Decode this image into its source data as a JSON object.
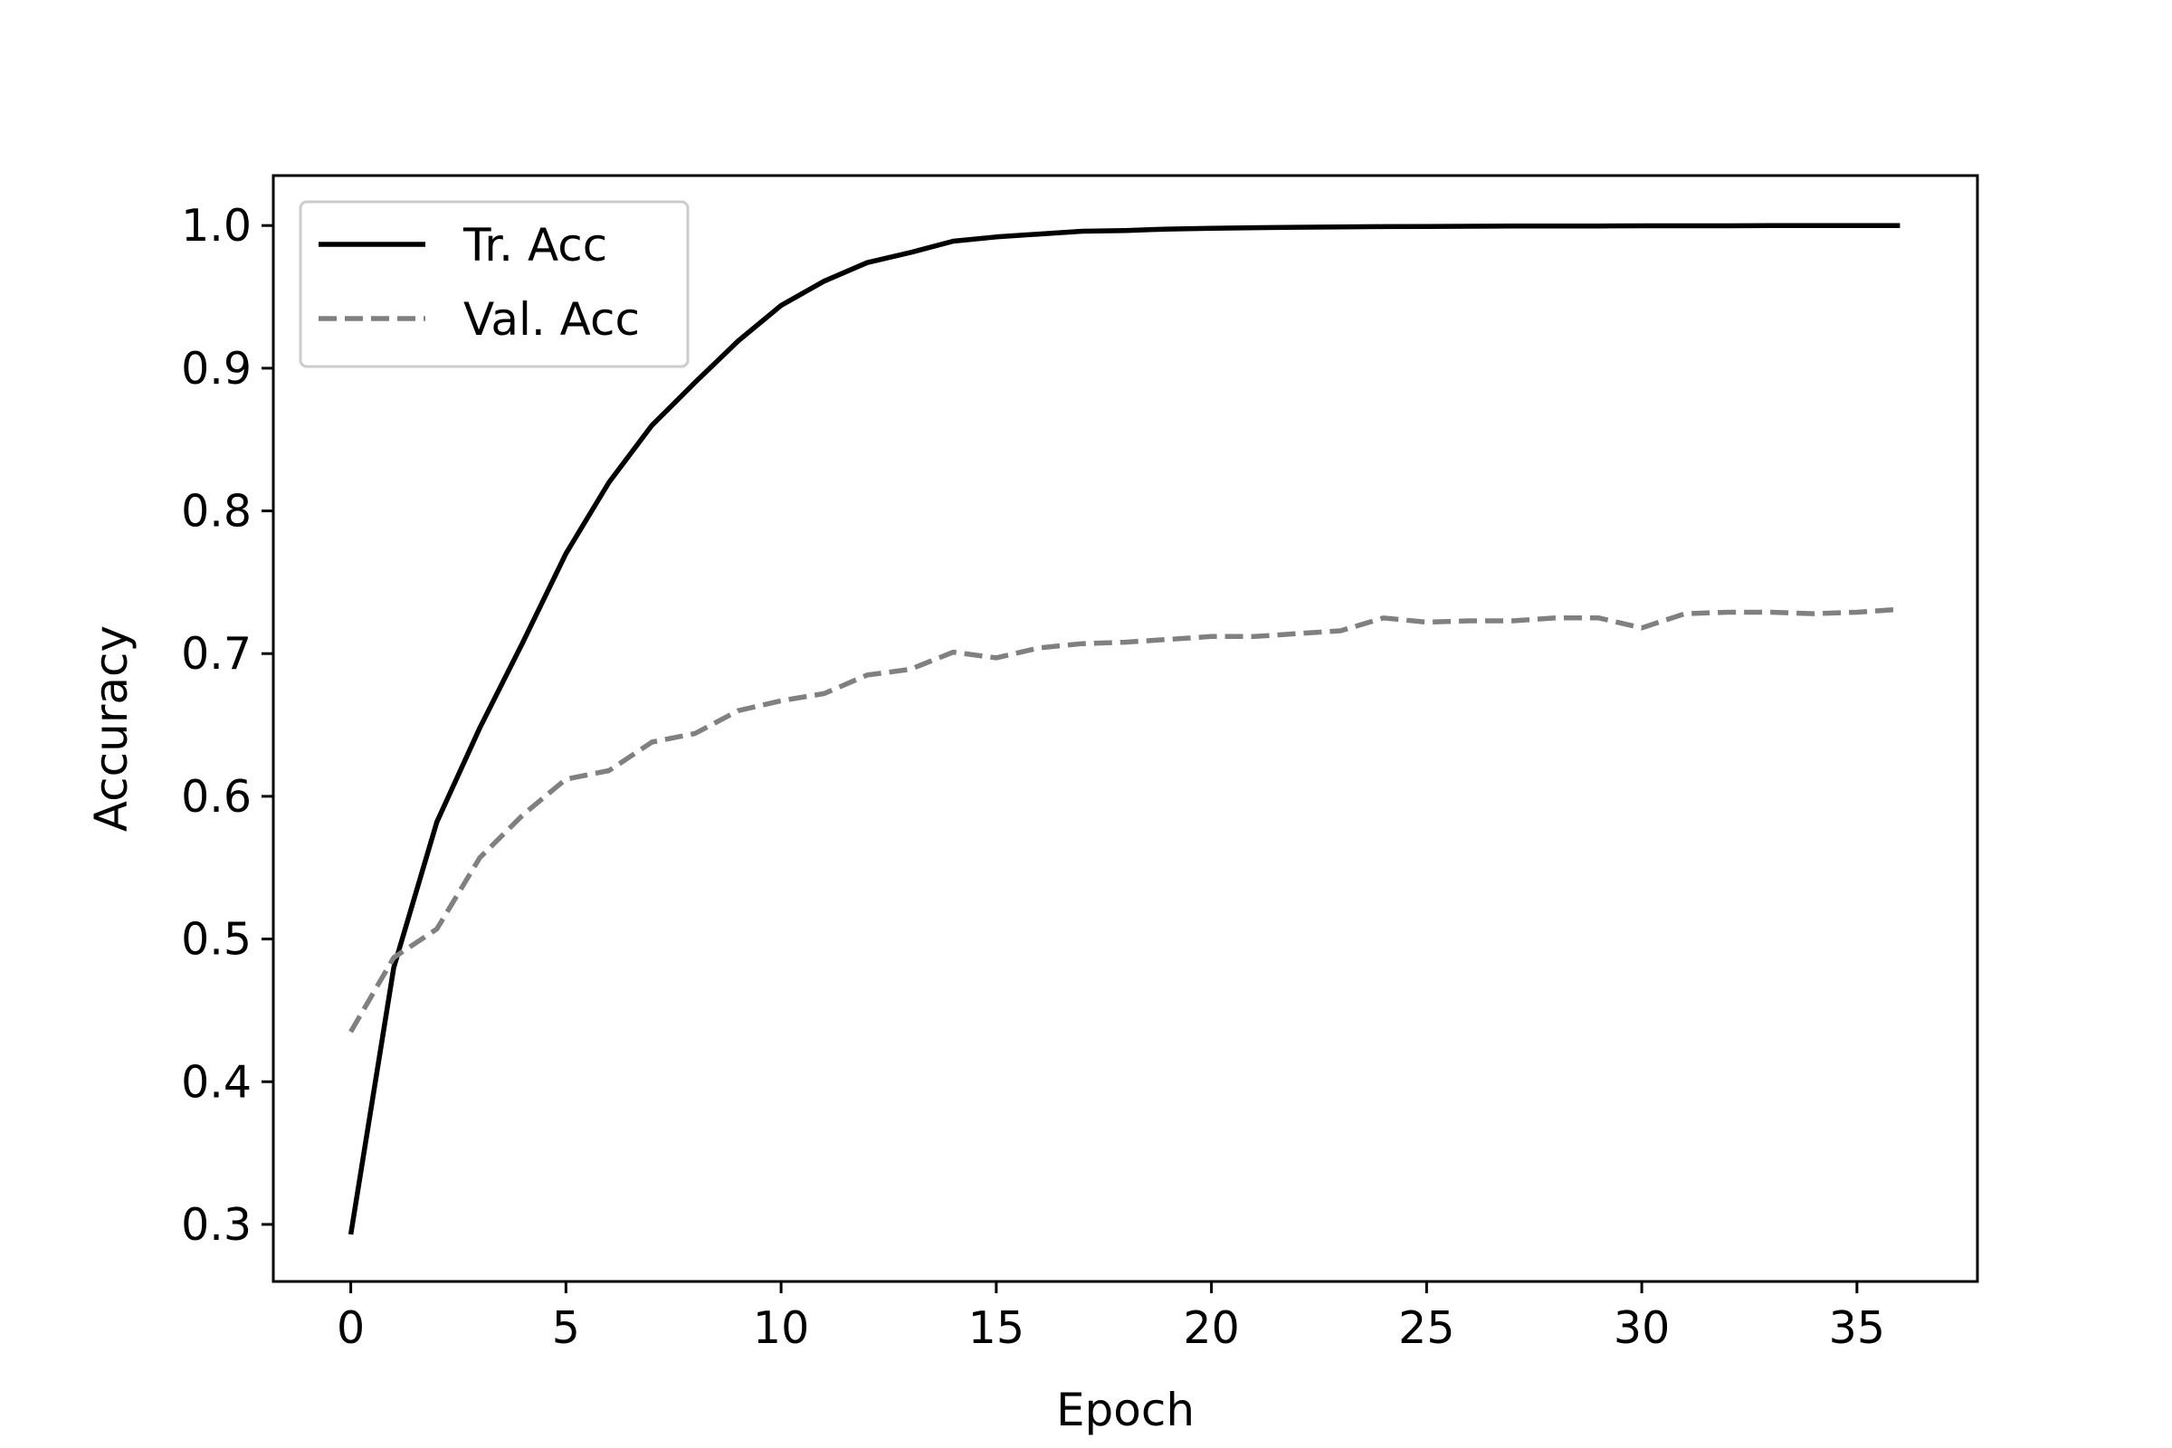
{
  "chart_data": {
    "type": "line",
    "title": "",
    "xlabel": "Epoch",
    "ylabel": "Accuracy",
    "xlim": [
      -1.8,
      37.8
    ],
    "ylim": [
      0.26,
      1.035
    ],
    "xticks": [
      0,
      5,
      10,
      15,
      20,
      25,
      30,
      35
    ],
    "xtick_labels": [
      "0",
      "5",
      "10",
      "15",
      "20",
      "25",
      "30",
      "35"
    ],
    "yticks": [
      0.3,
      0.4,
      0.5,
      0.6,
      0.7,
      0.8,
      0.9,
      1.0
    ],
    "ytick_labels": [
      "0.3",
      "0.4",
      "0.5",
      "0.6",
      "0.7",
      "0.8",
      "0.9",
      "1.0"
    ],
    "grid": false,
    "legend_position": "top-left",
    "x": [
      0,
      1,
      2,
      3,
      4,
      5,
      6,
      7,
      8,
      9,
      10,
      11,
      12,
      13,
      14,
      15,
      16,
      17,
      18,
      19,
      20,
      21,
      22,
      23,
      24,
      25,
      26,
      27,
      28,
      29,
      30,
      31,
      32,
      33,
      34,
      35,
      36
    ],
    "series": [
      {
        "name": "Tr. Acc",
        "style": "solid",
        "color": "#000000",
        "values": [
          0.293,
          0.48,
          0.582,
          0.648,
          0.708,
          0.77,
          0.82,
          0.86,
          0.89,
          0.919,
          0.944,
          0.961,
          0.974,
          0.981,
          0.989,
          0.992,
          0.994,
          0.996,
          0.9965,
          0.9975,
          0.998,
          0.9985,
          0.9988,
          0.999,
          0.9992,
          0.9993,
          0.9995,
          0.9996,
          0.9997,
          0.9997,
          0.9998,
          0.9998,
          0.9998,
          0.9999,
          0.9999,
          0.9999,
          0.9999
        ]
      },
      {
        "name": "Val. Acc",
        "style": "dashed",
        "color": "#808080",
        "values": [
          0.435,
          0.487,
          0.507,
          0.557,
          0.587,
          0.612,
          0.618,
          0.638,
          0.644,
          0.66,
          0.667,
          0.672,
          0.685,
          0.689,
          0.701,
          0.697,
          0.704,
          0.707,
          0.708,
          0.71,
          0.712,
          0.712,
          0.714,
          0.716,
          0.725,
          0.722,
          0.723,
          0.723,
          0.725,
          0.725,
          0.718,
          0.728,
          0.729,
          0.729,
          0.728,
          0.729,
          0.731
        ]
      }
    ]
  }
}
